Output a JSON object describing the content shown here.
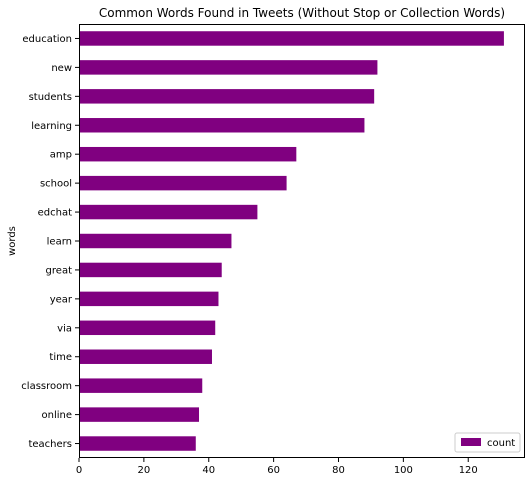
{
  "chart_data": {
    "type": "bar",
    "orientation": "horizontal",
    "title": "Common Words Found in Tweets (Without Stop or Collection Words)",
    "xlabel": "",
    "ylabel": "words",
    "categories": [
      "education",
      "new",
      "students",
      "learning",
      "amp",
      "school",
      "edchat",
      "learn",
      "great",
      "year",
      "via",
      "time",
      "classroom",
      "online",
      "teachers"
    ],
    "series": [
      {
        "name": "count",
        "values": [
          131,
          92,
          91,
          88,
          67,
          64,
          55,
          47,
          44,
          43,
          42,
          41,
          38,
          37,
          36
        ],
        "color": "#800080"
      }
    ],
    "xlim": [
      0,
      137.5
    ],
    "xticks": [
      0,
      20,
      40,
      60,
      80,
      100,
      120
    ],
    "grid": false,
    "legend": "lower-right"
  }
}
